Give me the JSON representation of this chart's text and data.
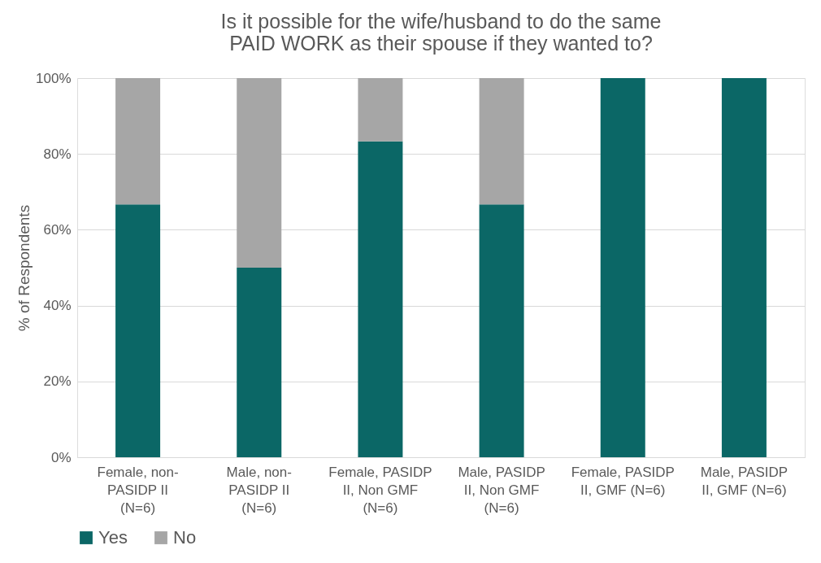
{
  "chart_data": {
    "type": "bar",
    "title": "Is it possible for the wife/husband to do the same PAID WORK as their spouse if they wanted to?",
    "ylabel": "% of Respondents",
    "categories": [
      "Female, non-PASIDP II (N=6)",
      "Male, non-PASIDP II (N=6)",
      "Female, PASIDP II, Non GMF (N=6)",
      "Male, PASIDP II, Non GMF (N=6)",
      "Female, PASIDP II, GMF (N=6)",
      "Male, PASIDP II, GMF (N=6)"
    ],
    "series": [
      {
        "name": "Yes",
        "color": "#0b6766",
        "values": [
          66.7,
          50,
          83.3,
          66.7,
          100,
          100
        ]
      },
      {
        "name": "No",
        "color": "#a6a6a6",
        "values": [
          33.3,
          50,
          16.7,
          33.3,
          0,
          0
        ]
      }
    ],
    "stacked": true,
    "ylim": [
      0,
      100
    ],
    "yticks": [
      {
        "value": 0,
        "label": "0%"
      },
      {
        "value": 20,
        "label": "20%"
      },
      {
        "value": 40,
        "label": "40%"
      },
      {
        "value": 60,
        "label": "60%"
      },
      {
        "value": 80,
        "label": "80%"
      },
      {
        "value": 100,
        "label": "100%"
      }
    ],
    "grid": "y",
    "legend": "bottom"
  }
}
